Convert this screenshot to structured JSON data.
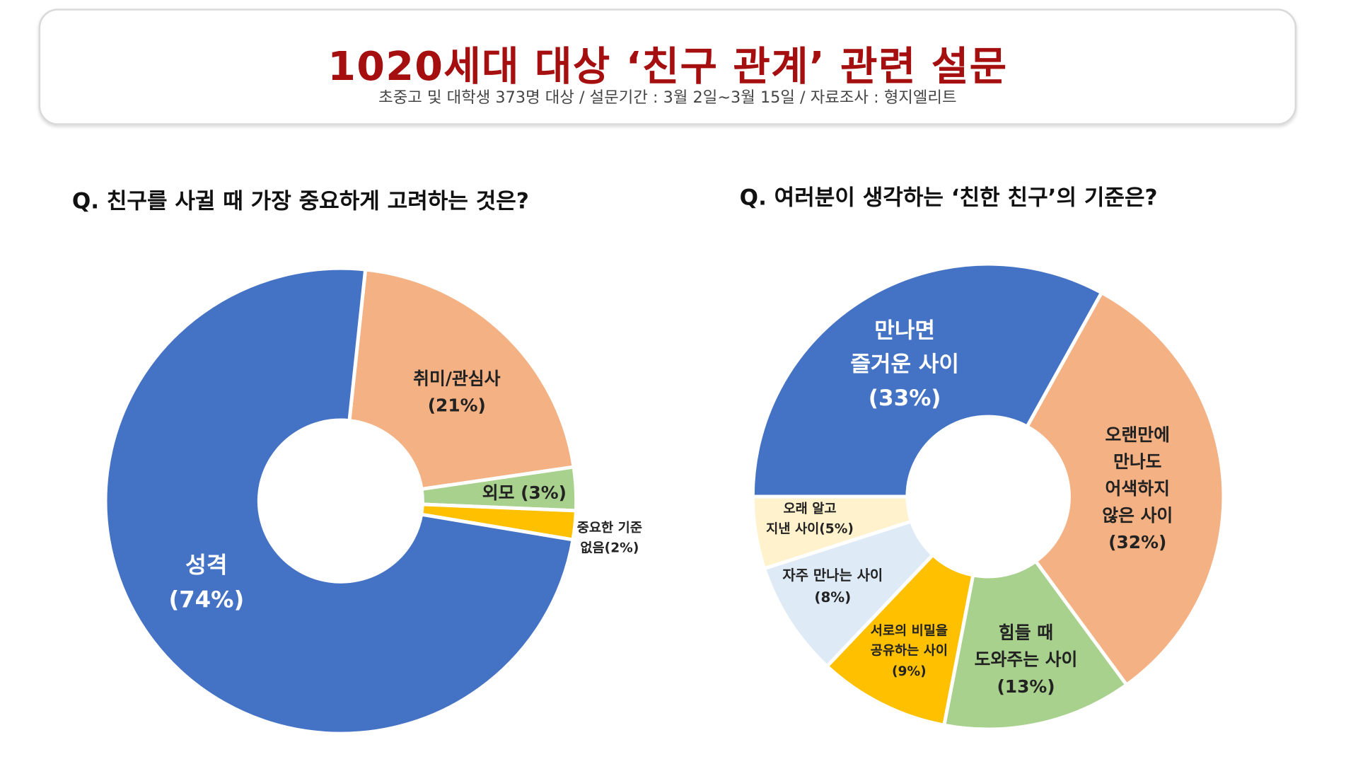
{
  "header": {
    "title": "1020세대 대상 ‘친구 관계’ 관련 설문",
    "subtitle": "초중고 및 대학생 373명 대상 / 설문기간 : 3월 2일~3월 15일 / 자료조사 : 형지엘리트"
  },
  "chart_data": [
    {
      "type": "pie",
      "donut": true,
      "title": "Q. 친구를 사귈 때 가장 중요하게 고려하는 것은?",
      "slices": [
        {
          "label": [
            "취미/관심사",
            "(21%)"
          ],
          "value": 21,
          "color": "#F4B183"
        },
        {
          "label": [
            "외모 (3%)"
          ],
          "value": 3,
          "color": "#A9D18E"
        },
        {
          "label": [
            "중요한 기준",
            "없음(2%)"
          ],
          "value": 2,
          "color": "#FFC000"
        },
        {
          "label": [
            "성격",
            "(74%)"
          ],
          "value": 74,
          "color": "#4472C4"
        }
      ]
    },
    {
      "type": "pie",
      "donut": true,
      "title": "Q. 여러분이 생각하는 ‘친한 친구’의 기준은?",
      "slices": [
        {
          "label": [
            "만나면",
            "즐거운 사이",
            "(33%)"
          ],
          "value": 33,
          "color": "#4472C4"
        },
        {
          "label": [
            "오랜만에",
            "만나도",
            "어색하지",
            "않은 사이",
            "(32%)"
          ],
          "value": 32,
          "color": "#F4B183"
        },
        {
          "label": [
            "힘들 때",
            "도와주는 사이",
            "(13%)"
          ],
          "value": 13,
          "color": "#A9D18E"
        },
        {
          "label": [
            "서로의 비밀을",
            "공유하는 사이",
            "(9%)"
          ],
          "value": 9,
          "color": "#FFC000"
        },
        {
          "label": [
            "자주 만나는 사이",
            "(8%)"
          ],
          "value": 8,
          "color": "#DEEBF7"
        },
        {
          "label": [
            "오래 알고",
            "지낸 사이(5%)"
          ],
          "value": 5,
          "color": "#FFF2CC"
        }
      ]
    }
  ]
}
